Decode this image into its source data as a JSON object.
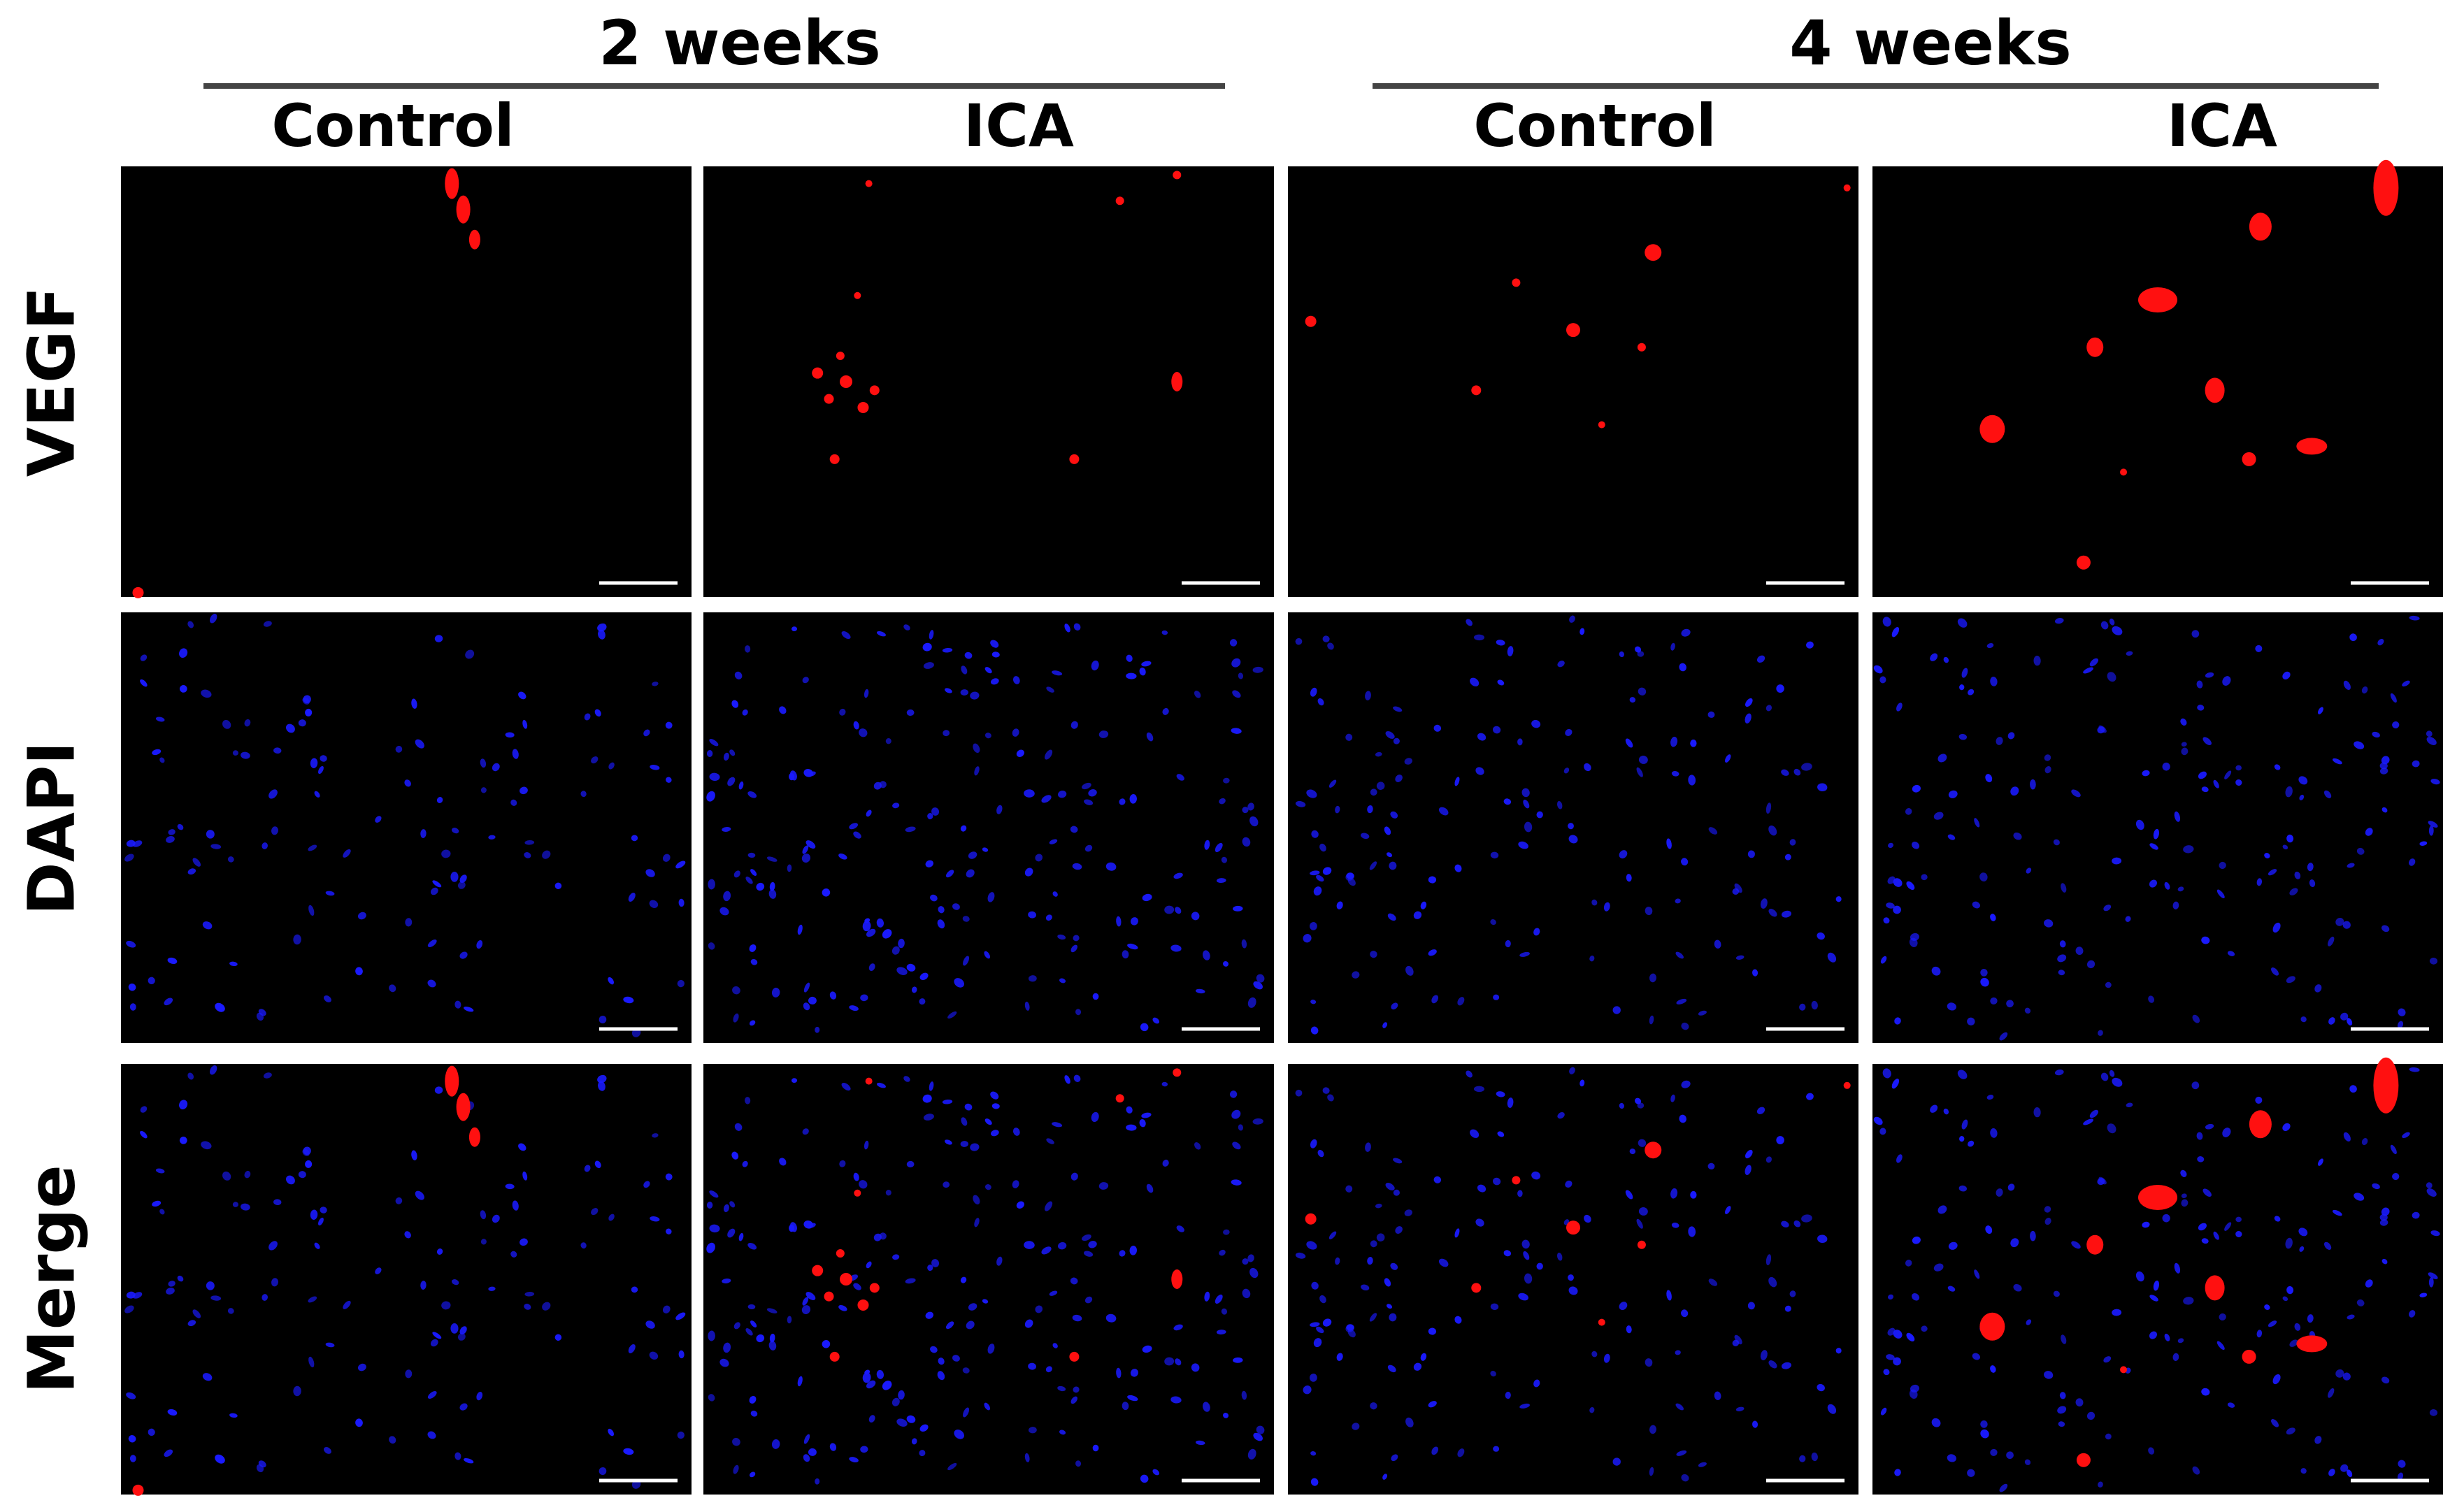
{
  "header": {
    "groups": [
      {
        "label": "2 weeks",
        "columns": [
          "Control",
          "ICA"
        ]
      },
      {
        "label": "4 weeks",
        "columns": [
          "Control",
          "ICA"
        ]
      }
    ]
  },
  "rows": [
    "VEGF",
    "DAPI",
    "Merge"
  ]
}
